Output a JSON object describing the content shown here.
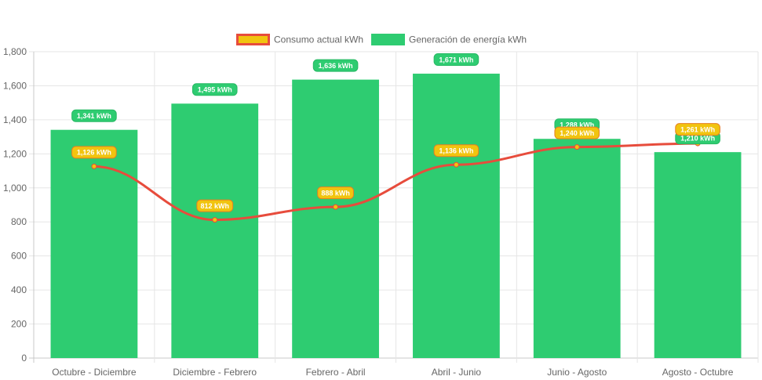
{
  "chart_data": {
    "type": "bar",
    "categories": [
      "Octubre - Diciembre",
      "Diciembre - Febrero",
      "Febrero - Abril",
      "Abril - Junio",
      "Junio - Agosto",
      "Agosto - Octubre"
    ],
    "series": [
      {
        "name": "Generación de energía kWh",
        "type": "bar",
        "values": [
          1341,
          1495,
          1636,
          1671,
          1288,
          1210
        ],
        "labels": [
          "1,341 kWh",
          "1,495 kWh",
          "1,636 kWh",
          "1,671 kWh",
          "1,288 kWh",
          "1,210 kWh"
        ],
        "color": "#2ecc71"
      },
      {
        "name": "Consumo actual kWh",
        "type": "line",
        "values": [
          1126,
          812,
          888,
          1136,
          1240,
          1261
        ],
        "labels": [
          "1,126 kWh",
          "812 kWh",
          "888 kWh",
          "1,136 kWh",
          "1,240 kWh",
          "1,261 kWh"
        ],
        "color": "#e74c3c",
        "label_color": "#f1c40f"
      }
    ],
    "legend": [
      {
        "label": "Consumo actual kWh",
        "fill": "#f1c40f",
        "border": "#e74c3c"
      },
      {
        "label": "Generación de energía kWh",
        "fill": "#2ecc71",
        "border": "#2ecc71"
      }
    ],
    "legend_position": "top",
    "ylim": [
      0,
      1800
    ],
    "yticks": [
      0,
      200,
      400,
      600,
      800,
      1000,
      1200,
      1400,
      1600,
      1800
    ],
    "ytick_labels": [
      "0",
      "200",
      "400",
      "600",
      "800",
      "1,000",
      "1,200",
      "1,400",
      "1,600",
      "1,800"
    ],
    "grid": true
  }
}
